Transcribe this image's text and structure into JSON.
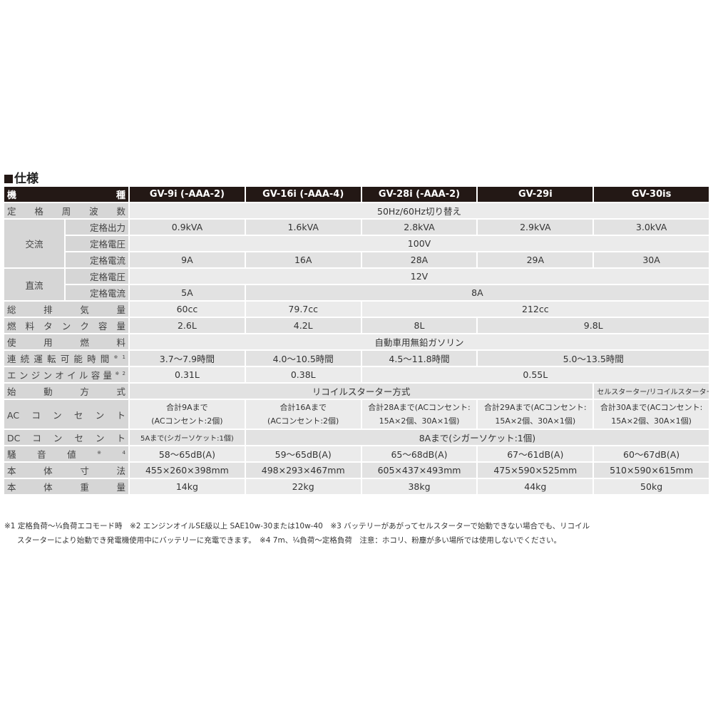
{
  "title": "仕様",
  "header": {
    "label": "機種",
    "models": [
      "GV-9i (-AAA-2)",
      "GV-16i (-AAA-4)",
      "GV-28i (-AAA-2)",
      "GV-29i",
      "GV-30is"
    ]
  },
  "rows": [
    {
      "label": "定格周波数",
      "cells": [
        {
          "text": "50Hz/60Hz切り替え",
          "span": 5
        }
      ]
    },
    {
      "group": "交流",
      "group_rows": 3,
      "label": "定格出力",
      "cells": [
        {
          "text": "0.9kVA"
        },
        {
          "text": "1.6kVA"
        },
        {
          "text": "2.8kVA"
        },
        {
          "text": "2.9kVA"
        },
        {
          "text": "3.0kVA"
        }
      ]
    },
    {
      "in_group": true,
      "label": "定格電圧",
      "cells": [
        {
          "text": "100V",
          "span": 5
        }
      ]
    },
    {
      "in_group": true,
      "label": "定格電流",
      "cells": [
        {
          "text": "9A"
        },
        {
          "text": "16A"
        },
        {
          "text": "28A"
        },
        {
          "text": "29A"
        },
        {
          "text": "30A"
        }
      ]
    },
    {
      "group": "直流",
      "group_rows": 2,
      "label": "定格電圧",
      "cells": [
        {
          "text": "12V",
          "span": 5
        }
      ]
    },
    {
      "in_group": true,
      "label": "定格電流",
      "cells": [
        {
          "text": "5A"
        },
        {
          "text": "8A",
          "span": 4
        }
      ]
    },
    {
      "label": "総排気量",
      "cells": [
        {
          "text": "60cc"
        },
        {
          "text": "79.7cc"
        },
        {
          "text": "212cc",
          "span": 3
        }
      ]
    },
    {
      "label": "燃料タンク容量",
      "cells": [
        {
          "text": "2.6L"
        },
        {
          "text": "4.2L"
        },
        {
          "text": "8L"
        },
        {
          "text": "9.8L",
          "span": 2
        }
      ]
    },
    {
      "label": "使用燃料",
      "cells": [
        {
          "text": "自動車用無鉛ガソリン",
          "span": 5
        }
      ]
    },
    {
      "label": "連続運転可能時間",
      "note": "※1",
      "cells": [
        {
          "text": "3.7〜7.9時間"
        },
        {
          "text": "4.0〜10.5時間"
        },
        {
          "text": "4.5〜11.8時間"
        },
        {
          "text": "5.0〜13.5時間",
          "span": 2
        }
      ]
    },
    {
      "label": "エンジンオイル容量",
      "note": "※2",
      "cells": [
        {
          "text": "0.31L"
        },
        {
          "text": "0.38L"
        },
        {
          "text": "0.55L",
          "span": 3
        }
      ]
    },
    {
      "label": "始動方式",
      "cells": [
        {
          "text": "リコイルスターター方式",
          "span": 4
        },
        {
          "text": "セルスターター/リコイルスターター併用",
          "style": "small"
        }
      ]
    },
    {
      "label": "ACコンセント",
      "tall": true,
      "cells": [
        {
          "text": "合計9Aまで\n(ACコンセント:2個)"
        },
        {
          "text": "合計16Aまで\n(ACコンセント:2個)"
        },
        {
          "text": "合計28Aまで(ACコンセント:\n15A×2個、30A×1個)"
        },
        {
          "text": "合計29Aまで(ACコンセント:\n15A×2個、30A×1個)"
        },
        {
          "text": "合計30Aまで(ACコンセント:\n15A×2個、30A×1個)"
        }
      ]
    },
    {
      "label": "DCコンセント",
      "cells": [
        {
          "text": "5Aまで(シガーソケット:1個)",
          "style": "small"
        },
        {
          "text": "8Aまで(シガーソケット:1個)",
          "span": 4
        }
      ]
    },
    {
      "label": "騒音値",
      "note": "※4",
      "cells": [
        {
          "text": "58〜65dB(A)"
        },
        {
          "text": "59〜65dB(A)"
        },
        {
          "text": "65〜68dB(A)"
        },
        {
          "text": "67〜61dB(A)"
        },
        {
          "text": "60〜67dB(A)"
        }
      ]
    },
    {
      "label": "本体寸法",
      "cells": [
        {
          "text": "455×260×398mm"
        },
        {
          "text": "498×293×467mm"
        },
        {
          "text": "605×437×493mm"
        },
        {
          "text": "475×590×525mm"
        },
        {
          "text": "510×590×615mm"
        }
      ]
    },
    {
      "label": "本体重量",
      "cells": [
        {
          "text": "14kg"
        },
        {
          "text": "22kg"
        },
        {
          "text": "38kg"
        },
        {
          "text": "44kg"
        },
        {
          "text": "50kg"
        }
      ]
    }
  ],
  "notes": [
    "※1 定格負荷〜¼負荷エコモード時　※2 エンジンオイルSE級以上 SAE10w-30または10w-40　※3 バッテリーがあがってセルスターターで始動できない場合でも、リコイル",
    "スターターにより始動でき発電機使用中にバッテリーに充電できます。　※4 7m、¼負荷〜定格負荷　注意：ホコリ、粉塵が多い場所では使用しないでください。"
  ]
}
